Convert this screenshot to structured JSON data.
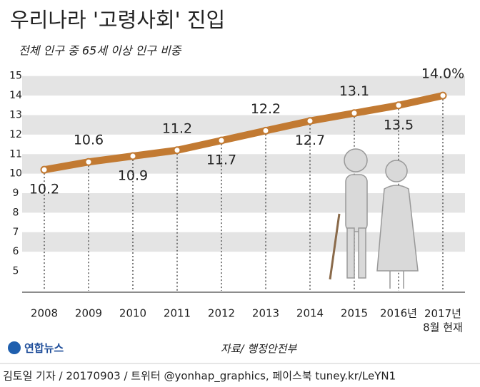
{
  "chart_data": {
    "type": "line",
    "title": "우리나라 '고령사회' 진입",
    "subtitle": "전체 인구 중 65세 이상 인구 비중",
    "categories": [
      "2008",
      "2009",
      "2010",
      "2011",
      "2012",
      "2013",
      "2014",
      "2015",
      "2016년",
      "2017년\n8월 현재"
    ],
    "values": [
      10.2,
      10.6,
      10.9,
      11.2,
      11.7,
      12.2,
      12.7,
      13.1,
      13.5,
      14.0
    ],
    "value_labels": [
      "10.2",
      "10.6",
      "10.9",
      "11.2",
      "11.7",
      "12.2",
      "12.7",
      "13.1",
      "13.5",
      "14.0%"
    ],
    "color": "#c27a32",
    "ylim": [
      4,
      15.5
    ],
    "yticks": [
      5,
      6,
      7,
      8,
      9,
      10,
      11,
      12,
      13,
      14,
      15
    ],
    "grid": true
  },
  "source": "자료/ 행정안전부",
  "logo": "연합뉴스",
  "credit": "김토일 기자 / 20170903 / 트위터 @yonhap_graphics, 페이스북 tuney.kr/LeYN1"
}
